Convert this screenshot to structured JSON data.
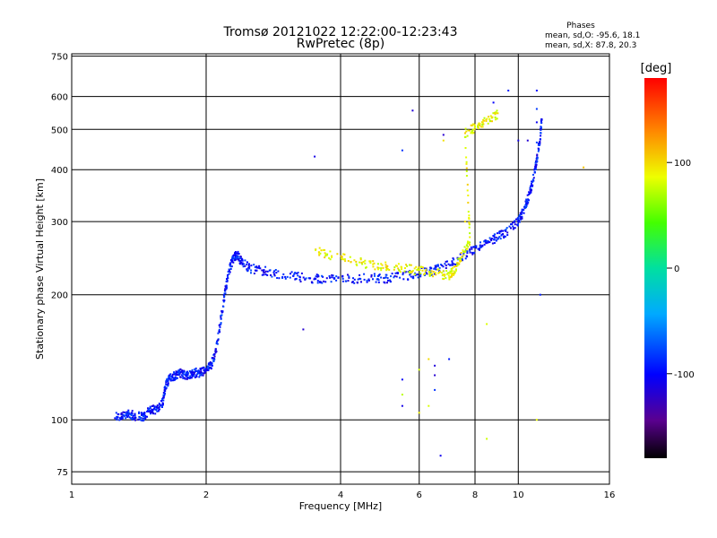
{
  "chart_data": {
    "type": "scatter",
    "title": "Tromsø 20121022 12:22:00-12:23:43",
    "subtitle": "RwPretec (8p)",
    "xlabel": "Frequency [MHz]",
    "ylabel": "Stationary phase Virtual Height [km]",
    "x_scale": "log",
    "y_scale": "log",
    "xlim": [
      1,
      16
    ],
    "ylim": [
      70,
      760
    ],
    "x_ticks": [
      1,
      2,
      4,
      6,
      8,
      10,
      16
    ],
    "y_ticks": [
      75,
      100,
      200,
      300,
      400,
      500,
      600,
      750
    ],
    "grid": true,
    "legend": {
      "title": "Phases",
      "line1": "mean, sd,O: -95.6, 18.1",
      "line2": "mean, sd,X:  87.8, 20.3"
    },
    "colorbar": {
      "label": "[deg]",
      "range": [
        -180,
        180
      ],
      "ticks": [
        100,
        0,
        -100
      ],
      "colormap": "rainbow"
    },
    "o_trace": [
      [
        1.25,
        102
      ],
      [
        1.3,
        102
      ],
      [
        1.35,
        103
      ],
      [
        1.4,
        102
      ],
      [
        1.45,
        102
      ],
      [
        1.5,
        106
      ],
      [
        1.55,
        106
      ],
      [
        1.6,
        110
      ],
      [
        1.62,
        120
      ],
      [
        1.65,
        125
      ],
      [
        1.7,
        128
      ],
      [
        1.75,
        130
      ],
      [
        1.8,
        128
      ],
      [
        1.85,
        128
      ],
      [
        1.9,
        130
      ],
      [
        1.95,
        130
      ],
      [
        2.0,
        132
      ],
      [
        2.05,
        135
      ],
      [
        2.1,
        145
      ],
      [
        2.15,
        170
      ],
      [
        2.2,
        200
      ],
      [
        2.25,
        228
      ],
      [
        2.3,
        245
      ],
      [
        2.35,
        250
      ],
      [
        2.4,
        240
      ],
      [
        2.5,
        232
      ],
      [
        2.7,
        228
      ],
      [
        3.0,
        223
      ],
      [
        3.3,
        220
      ],
      [
        3.6,
        218
      ],
      [
        4.0,
        218
      ],
      [
        4.5,
        219
      ],
      [
        5.0,
        219
      ],
      [
        5.5,
        221
      ],
      [
        6.0,
        226
      ],
      [
        6.5,
        229
      ],
      [
        7.0,
        236
      ],
      [
        7.5,
        247
      ],
      [
        8.0,
        257
      ],
      [
        8.5,
        266
      ],
      [
        9.0,
        276
      ],
      [
        9.5,
        285
      ],
      [
        10.0,
        300
      ],
      [
        10.3,
        320
      ],
      [
        10.6,
        350
      ],
      [
        10.8,
        380
      ],
      [
        11.0,
        420
      ],
      [
        11.2,
        480
      ],
      [
        11.3,
        540
      ]
    ],
    "x_trace": [
      [
        3.5,
        255
      ],
      [
        4.0,
        246
      ],
      [
        4.5,
        238
      ],
      [
        5.0,
        234
      ],
      [
        5.5,
        231
      ],
      [
        6.0,
        229
      ],
      [
        6.5,
        226
      ],
      [
        7.0,
        222
      ],
      [
        7.2,
        230
      ],
      [
        7.5,
        250
      ],
      [
        7.8,
        270
      ],
      [
        7.6,
        490
      ],
      [
        8.0,
        505
      ],
      [
        8.5,
        525
      ],
      [
        9.0,
        545
      ]
    ],
    "scatter_o": [
      [
        3.5,
        430
      ],
      [
        3.3,
        165
      ],
      [
        5.5,
        445
      ],
      [
        5.5,
        108
      ],
      [
        5.5,
        125
      ],
      [
        6.5,
        135
      ],
      [
        6.5,
        118
      ],
      [
        6.5,
        128
      ],
      [
        6.7,
        82
      ],
      [
        7.0,
        140
      ],
      [
        6.8,
        485
      ],
      [
        8.8,
        580
      ],
      [
        9.5,
        620
      ],
      [
        11.0,
        620
      ],
      [
        11.0,
        560
      ],
      [
        11.0,
        520
      ],
      [
        11.2,
        200
      ],
      [
        11.0,
        465
      ],
      [
        10.5,
        470
      ],
      [
        10.0,
        470
      ],
      [
        5.8,
        555
      ]
    ],
    "scatter_x": [
      [
        5.5,
        115
      ],
      [
        6.0,
        132
      ],
      [
        6.0,
        104
      ],
      [
        6.3,
        108
      ],
      [
        6.8,
        470
      ],
      [
        7.6,
        300
      ],
      [
        8.5,
        170
      ],
      [
        8.5,
        90
      ],
      [
        11.0,
        100
      ],
      [
        14.0,
        405
      ],
      [
        6.3,
        140
      ]
    ]
  }
}
